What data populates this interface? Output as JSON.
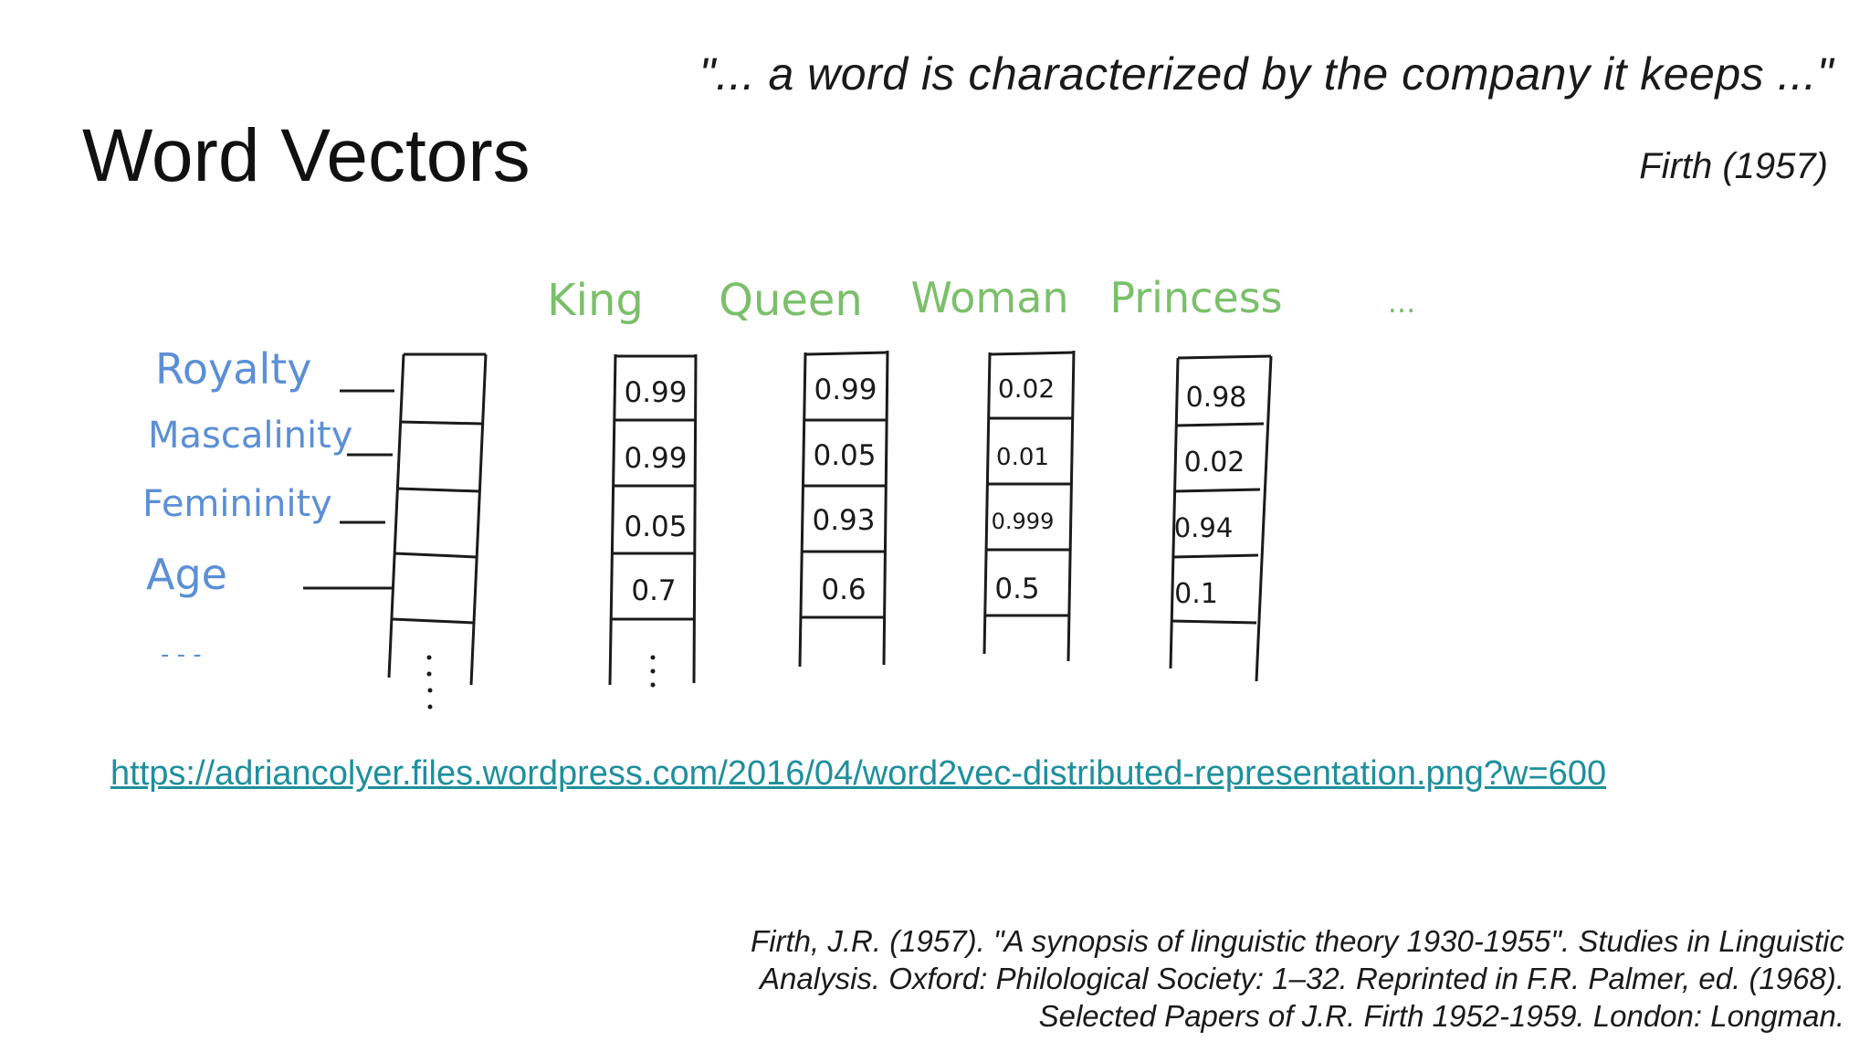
{
  "slide": {
    "title": "Word Vectors",
    "quote": "\"... a word is characterized by the company it keeps ...\"",
    "attribution": "Firth (1957)",
    "link": "https://adriancolyer.files.wordpress.com/2016/04/word2vec-distributed-representation.png?w=600",
    "citation_lines": [
      "Firth, J.R. (1957). \"A synopsis of linguistic theory 1930-1955\". Studies in Linguistic",
      "Analysis. Oxford: Philological Society: 1–32. Reprinted in F.R. Palmer, ed. (1968).",
      "Selected Papers of J.R. Firth 1952-1959. London: Longman."
    ]
  },
  "diagram": {
    "dimensions": [
      "Royalty",
      "Mascalinity",
      "Femininity",
      "Age"
    ],
    "dimension_ellipsis": "- - -",
    "words": [
      {
        "word": "King",
        "values": [
          "0.99",
          "0.99",
          "0.05",
          "0.7"
        ]
      },
      {
        "word": "Queen",
        "values": [
          "0.99",
          "0.05",
          "0.93",
          "0.6"
        ]
      },
      {
        "word": "Woman",
        "values": [
          "0.02",
          "0.01",
          "0.999",
          "0.5"
        ]
      },
      {
        "word": "Princess",
        "values": [
          "0.98",
          "0.02",
          "0.94",
          "0.1"
        ]
      }
    ],
    "words_ellipsis": "...",
    "colors": {
      "dimension_label": "#5b8fd6",
      "word_label": "#7bbf6a",
      "ink": "#1a1a1a",
      "link": "#1e8f9c"
    }
  }
}
